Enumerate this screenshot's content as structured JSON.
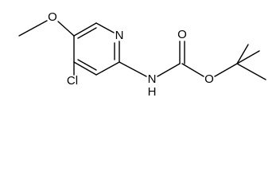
{
  "atoms": [
    {
      "label": "O"
    },
    {
      "label": "N"
    },
    {
      "label": "Cl"
    },
    {
      "label": "N"
    },
    {
      "label": "H"
    },
    {
      "label": "O"
    },
    {
      "label": "O"
    }
  ]
}
